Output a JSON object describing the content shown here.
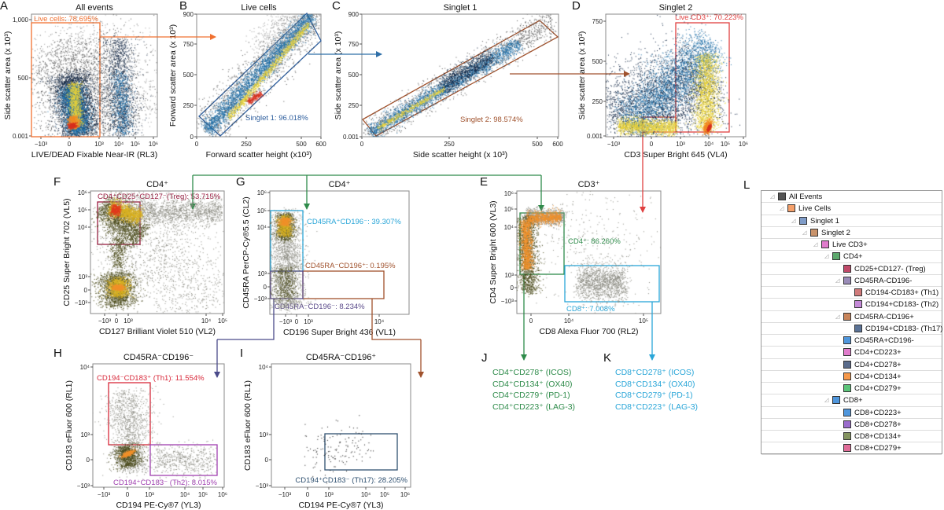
{
  "chart_data": [
    {
      "panel": "A",
      "type": "scatter",
      "title": "All events",
      "xlabel": "LIVE/DEAD Fixable Near-IR (RL3)",
      "ylabel": "Side scatter area (x 10³)",
      "xticks": [
        "−10³",
        "0",
        "10³",
        "10⁴",
        "10⁵",
        "10⁶"
      ],
      "yticks": [
        "1,000",
        "500",
        "0.001"
      ],
      "gates": [
        {
          "label": "Live cells: 78.695%",
          "percent": 78.695,
          "color": "#f07030"
        }
      ]
    },
    {
      "panel": "B",
      "type": "scatter",
      "title": "Live cells",
      "xlabel": "Forward scatter height (x10³)",
      "ylabel": "Forward scatter area (x 10³)",
      "xticks": [
        "0",
        "250",
        "500",
        "600"
      ],
      "yticks": [
        "900",
        "750",
        "500",
        "250",
        "0"
      ],
      "xlim": [
        0,
        600
      ],
      "ylim": [
        0,
        900
      ],
      "gates": [
        {
          "label": "Singlet 1: 96.018%",
          "percent": 96.018,
          "color": "#2f5f9e"
        }
      ]
    },
    {
      "panel": "C",
      "type": "scatter",
      "title": "Singlet 1",
      "xlabel": "Side scatter height (x 10³)",
      "ylabel": "Side scatter area (x 10³)",
      "xticks": [
        "0",
        "250",
        "500",
        "600"
      ],
      "yticks": [
        "900",
        "750",
        "500",
        "250",
        "0.001"
      ],
      "xlim": [
        0,
        600
      ],
      "ylim": [
        0,
        900
      ],
      "gates": [
        {
          "label": "Singlet 2: 98.574%",
          "percent": 98.574,
          "color": "#a0522d"
        }
      ]
    },
    {
      "panel": "D",
      "type": "scatter",
      "title": "Singlet 2",
      "xlabel": "CD3 Super Bright 645 (VL4)",
      "ylabel": "Side scatter area (x 10³)",
      "xticks": [
        "−10³",
        "0",
        "10³",
        "10⁴",
        "10⁵",
        "10⁶"
      ],
      "yticks": [
        "750",
        "500",
        "250",
        "0.001"
      ],
      "gates": [
        {
          "label": "Live CD3⁺: 70.223%",
          "percent": 70.223,
          "color": "#e04040"
        }
      ]
    },
    {
      "panel": "F",
      "type": "scatter",
      "title": "CD4⁺",
      "xlabel": "CD127 Brilliant Violet 510 (VL2)",
      "ylabel": "CD25 Super Bright 702 (VL5)",
      "xticks": [
        "−10³",
        "0",
        "10³",
        "10⁴",
        "10⁵"
      ],
      "yticks": [
        "10⁶",
        "10⁵",
        "10⁴",
        "10³",
        "0",
        "−10³"
      ],
      "gates": [
        {
          "label": "CD4⁺CD25⁺CD127⁻(Treg): 53.715%",
          "percent": 53.715,
          "color": "#9b1b40"
        }
      ]
    },
    {
      "panel": "G",
      "type": "scatter",
      "title": "CD4⁺",
      "xlabel": "CD196 Super Bright 436 (VL1)",
      "ylabel": "CD45RA PerCP-Cy®5.5 (CL2)",
      "xticks": [
        "−10³",
        "0",
        "10³",
        "10⁴"
      ],
      "yticks": [
        "10⁶",
        "10⁵",
        "10⁴",
        "10³",
        "0",
        "−10³"
      ],
      "gates": [
        {
          "label": "CD45RA⁺CD196⁻: 39.307%",
          "percent": 39.307,
          "color": "#2aa6d8"
        },
        {
          "label": "CD45RA⁻CD196⁺: 0.195%",
          "percent": 0.195,
          "color": "#a0522d"
        },
        {
          "label": "CD45RA⁻CD196⁻: 8.234%",
          "percent": 8.234,
          "color": "#5a4a8a"
        }
      ]
    },
    {
      "panel": "E",
      "type": "scatter",
      "title": "CD3⁺",
      "xlabel": "CD8 Alexa Fluor 700 (RL2)",
      "ylabel": "CD4 Super Bright 600 (VL3)",
      "xticks": [
        "0",
        "10⁴",
        "10⁵"
      ],
      "yticks": [
        "10⁶",
        "10⁵",
        "10⁴",
        "10³",
        "0",
        "−10³"
      ],
      "gates": [
        {
          "label": "CD4⁺: 86.260%",
          "percent": 86.26,
          "color": "#2e8b4a"
        },
        {
          "label": "CD8⁺: 7.008%",
          "percent": 7.008,
          "color": "#2aa6d8"
        }
      ]
    },
    {
      "panel": "H",
      "type": "scatter",
      "title": "CD45RA⁻CD196⁻",
      "xlabel": "CD194 PE-Cy®7 (YL3)",
      "ylabel": "CD183 eFluor 600 (RL1)",
      "xticks": [
        "−10³",
        "0",
        "10³",
        "10⁴",
        "10⁵",
        "10⁶"
      ],
      "yticks": [
        "10⁴",
        "10³",
        "0",
        "−10³"
      ],
      "gates": [
        {
          "label": "CD194⁻CD183⁺ (Th1): 11.554%",
          "percent": 11.554,
          "color": "#d8283a"
        },
        {
          "label": "CD194⁺CD183⁻ (Th2): 8.015%",
          "percent": 8.015,
          "color": "#a040b0"
        }
      ]
    },
    {
      "panel": "I",
      "type": "scatter",
      "title": "CD45RA⁻CD196⁺",
      "xlabel": "CD194 PE-Cy®7 (YL3)",
      "ylabel": "CD183 eFluor 600 (RL1)",
      "xticks": [
        "−10³",
        "0",
        "10³",
        "10⁴",
        "10⁵",
        "10⁶"
      ],
      "yticks": [
        "10⁴",
        "10³",
        "0",
        "−10³"
      ],
      "gates": [
        {
          "label": "CD194⁺CD183⁻ (Th17): 28.205%",
          "percent": 28.205,
          "color": "#2f5070"
        }
      ]
    }
  ],
  "lists": [
    {
      "panel": "J",
      "color": "#2e8b4a",
      "items": [
        "CD4⁺CD278⁺ (ICOS)",
        "CD4⁺CD134⁺ (OX40)",
        "CD4⁺CD279⁺ (PD-1)",
        "CD4⁺CD223⁺ (LAG-3)"
      ]
    },
    {
      "panel": "K",
      "color": "#2aa6d8",
      "items": [
        "CD8⁺CD278⁺ (ICOS)",
        "CD8⁺CD134⁺ (OX40)",
        "CD8⁺CD279⁺ (PD-1)",
        "CD8⁺CD223⁺ (LAG-3)"
      ]
    }
  ],
  "tree": {
    "panel": "L",
    "items": [
      {
        "label": "All Events",
        "depth": 0,
        "expander": true,
        "color": "#555555"
      },
      {
        "label": "Live Cells",
        "depth": 1,
        "expander": true,
        "color": "#f5a06a"
      },
      {
        "label": "Singlet 1",
        "depth": 2,
        "expander": true,
        "color": "#7f9cc8"
      },
      {
        "label": "Singlet 2",
        "depth": 3,
        "expander": true,
        "color": "#c8926a"
      },
      {
        "label": "Live CD3+",
        "depth": 4,
        "expander": true,
        "color": "#e07ccc"
      },
      {
        "label": "CD4+",
        "depth": 5,
        "expander": true,
        "color": "#5ca86c"
      },
      {
        "label": "CD25+CD127- (Treg)",
        "depth": 6,
        "expander": false,
        "color": "#c04a6a"
      },
      {
        "label": "CD45RA-CD196-",
        "depth": 6,
        "expander": true,
        "color": "#9a8cb8"
      },
      {
        "label": "CD194-CD183+ (Th1)",
        "depth": 7,
        "expander": false,
        "color": "#d07a7a"
      },
      {
        "label": "CD194+CD183- (Th2)",
        "depth": 7,
        "expander": false,
        "color": "#c58ad8"
      },
      {
        "label": "CD45RA-CD196+",
        "depth": 6,
        "expander": true,
        "color": "#c8845a"
      },
      {
        "label": "CD194+CD183- (Th17)",
        "depth": 7,
        "expander": false,
        "color": "#5a7296"
      },
      {
        "label": "CD45RA+CD196-",
        "depth": 6,
        "expander": false,
        "color": "#4f96dc"
      },
      {
        "label": "CD4+CD223+",
        "depth": 6,
        "expander": false,
        "color": "#e07ccc"
      },
      {
        "label": "CD4+CD278+",
        "depth": 6,
        "expander": false,
        "color": "#5a6c8c"
      },
      {
        "label": "CD4+CD134+",
        "depth": 6,
        "expander": false,
        "color": "#f5984a"
      },
      {
        "label": "CD4+CD279+",
        "depth": 6,
        "expander": false,
        "color": "#5cc47a"
      },
      {
        "label": "CD8+",
        "depth": 5,
        "expander": true,
        "color": "#4f96dc"
      },
      {
        "label": "CD8+CD223+",
        "depth": 6,
        "expander": false,
        "color": "#4f96dc"
      },
      {
        "label": "CD8+CD278+",
        "depth": 6,
        "expander": false,
        "color": "#9a6ccc"
      },
      {
        "label": "CD8+CD134+",
        "depth": 6,
        "expander": false,
        "color": "#849460"
      },
      {
        "label": "CD8+CD279+",
        "depth": 6,
        "expander": false,
        "color": "#e06c98"
      }
    ]
  },
  "colors": {
    "jet_low": "#1f4e79",
    "jet_mid": "#e8d23a",
    "jet_high": "#d7301f",
    "warm_mid": "#d8b020",
    "warm_high": "#f0902a"
  }
}
